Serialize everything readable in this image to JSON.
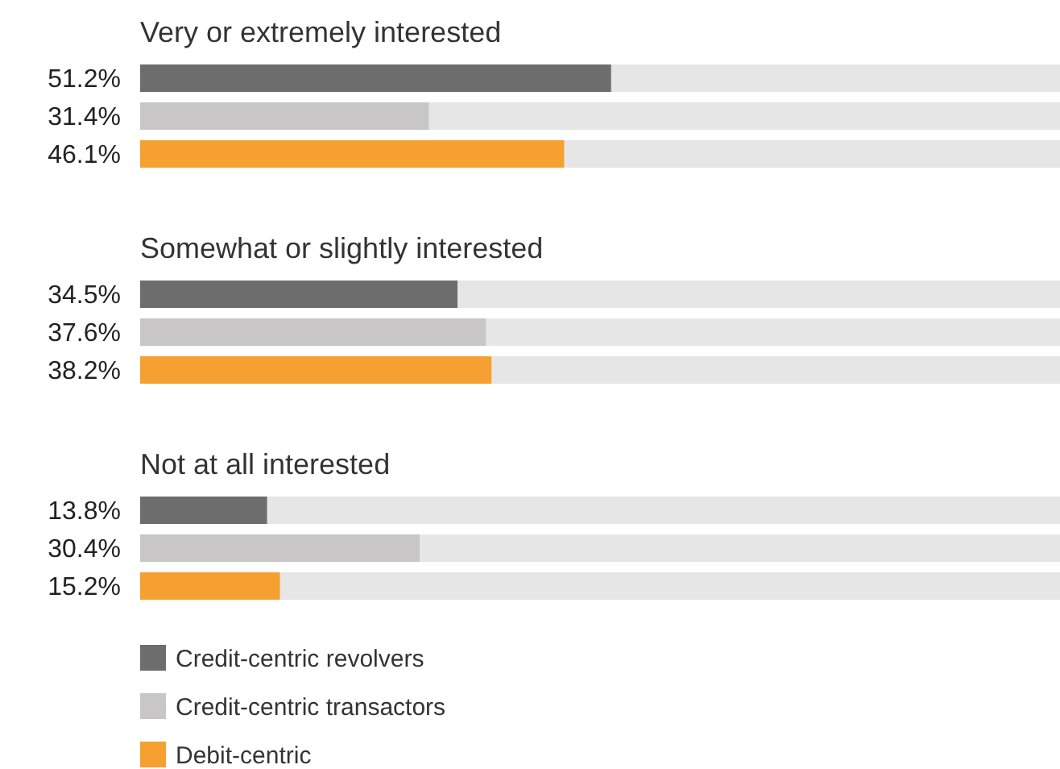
{
  "chart_data": {
    "type": "bar",
    "orientation": "horizontal",
    "categories": [
      "Very or extremely interested",
      "Somewhat or slightly interested",
      "Not at all interested"
    ],
    "xlim": [
      0,
      100
    ],
    "legend": "bottom left",
    "series": [
      {
        "name": "Credit-centric revolvers",
        "color": "#6d6d6d",
        "values": [
          51.2,
          34.5,
          13.8
        ],
        "value_labels": [
          "51.2%",
          "34.5%",
          "13.8%"
        ]
      },
      {
        "name": "Credit-centric transactors",
        "color": "#c8c6c7",
        "values": [
          31.4,
          37.6,
          30.4
        ],
        "value_labels": [
          "31.4%",
          "37.6%",
          "30.4%"
        ]
      },
      {
        "name": "Debit-centric",
        "color": "#f5a031",
        "values": [
          46.1,
          38.2,
          15.2
        ],
        "value_labels": [
          "46.1%",
          "38.2%",
          "15.2%"
        ]
      }
    ]
  }
}
